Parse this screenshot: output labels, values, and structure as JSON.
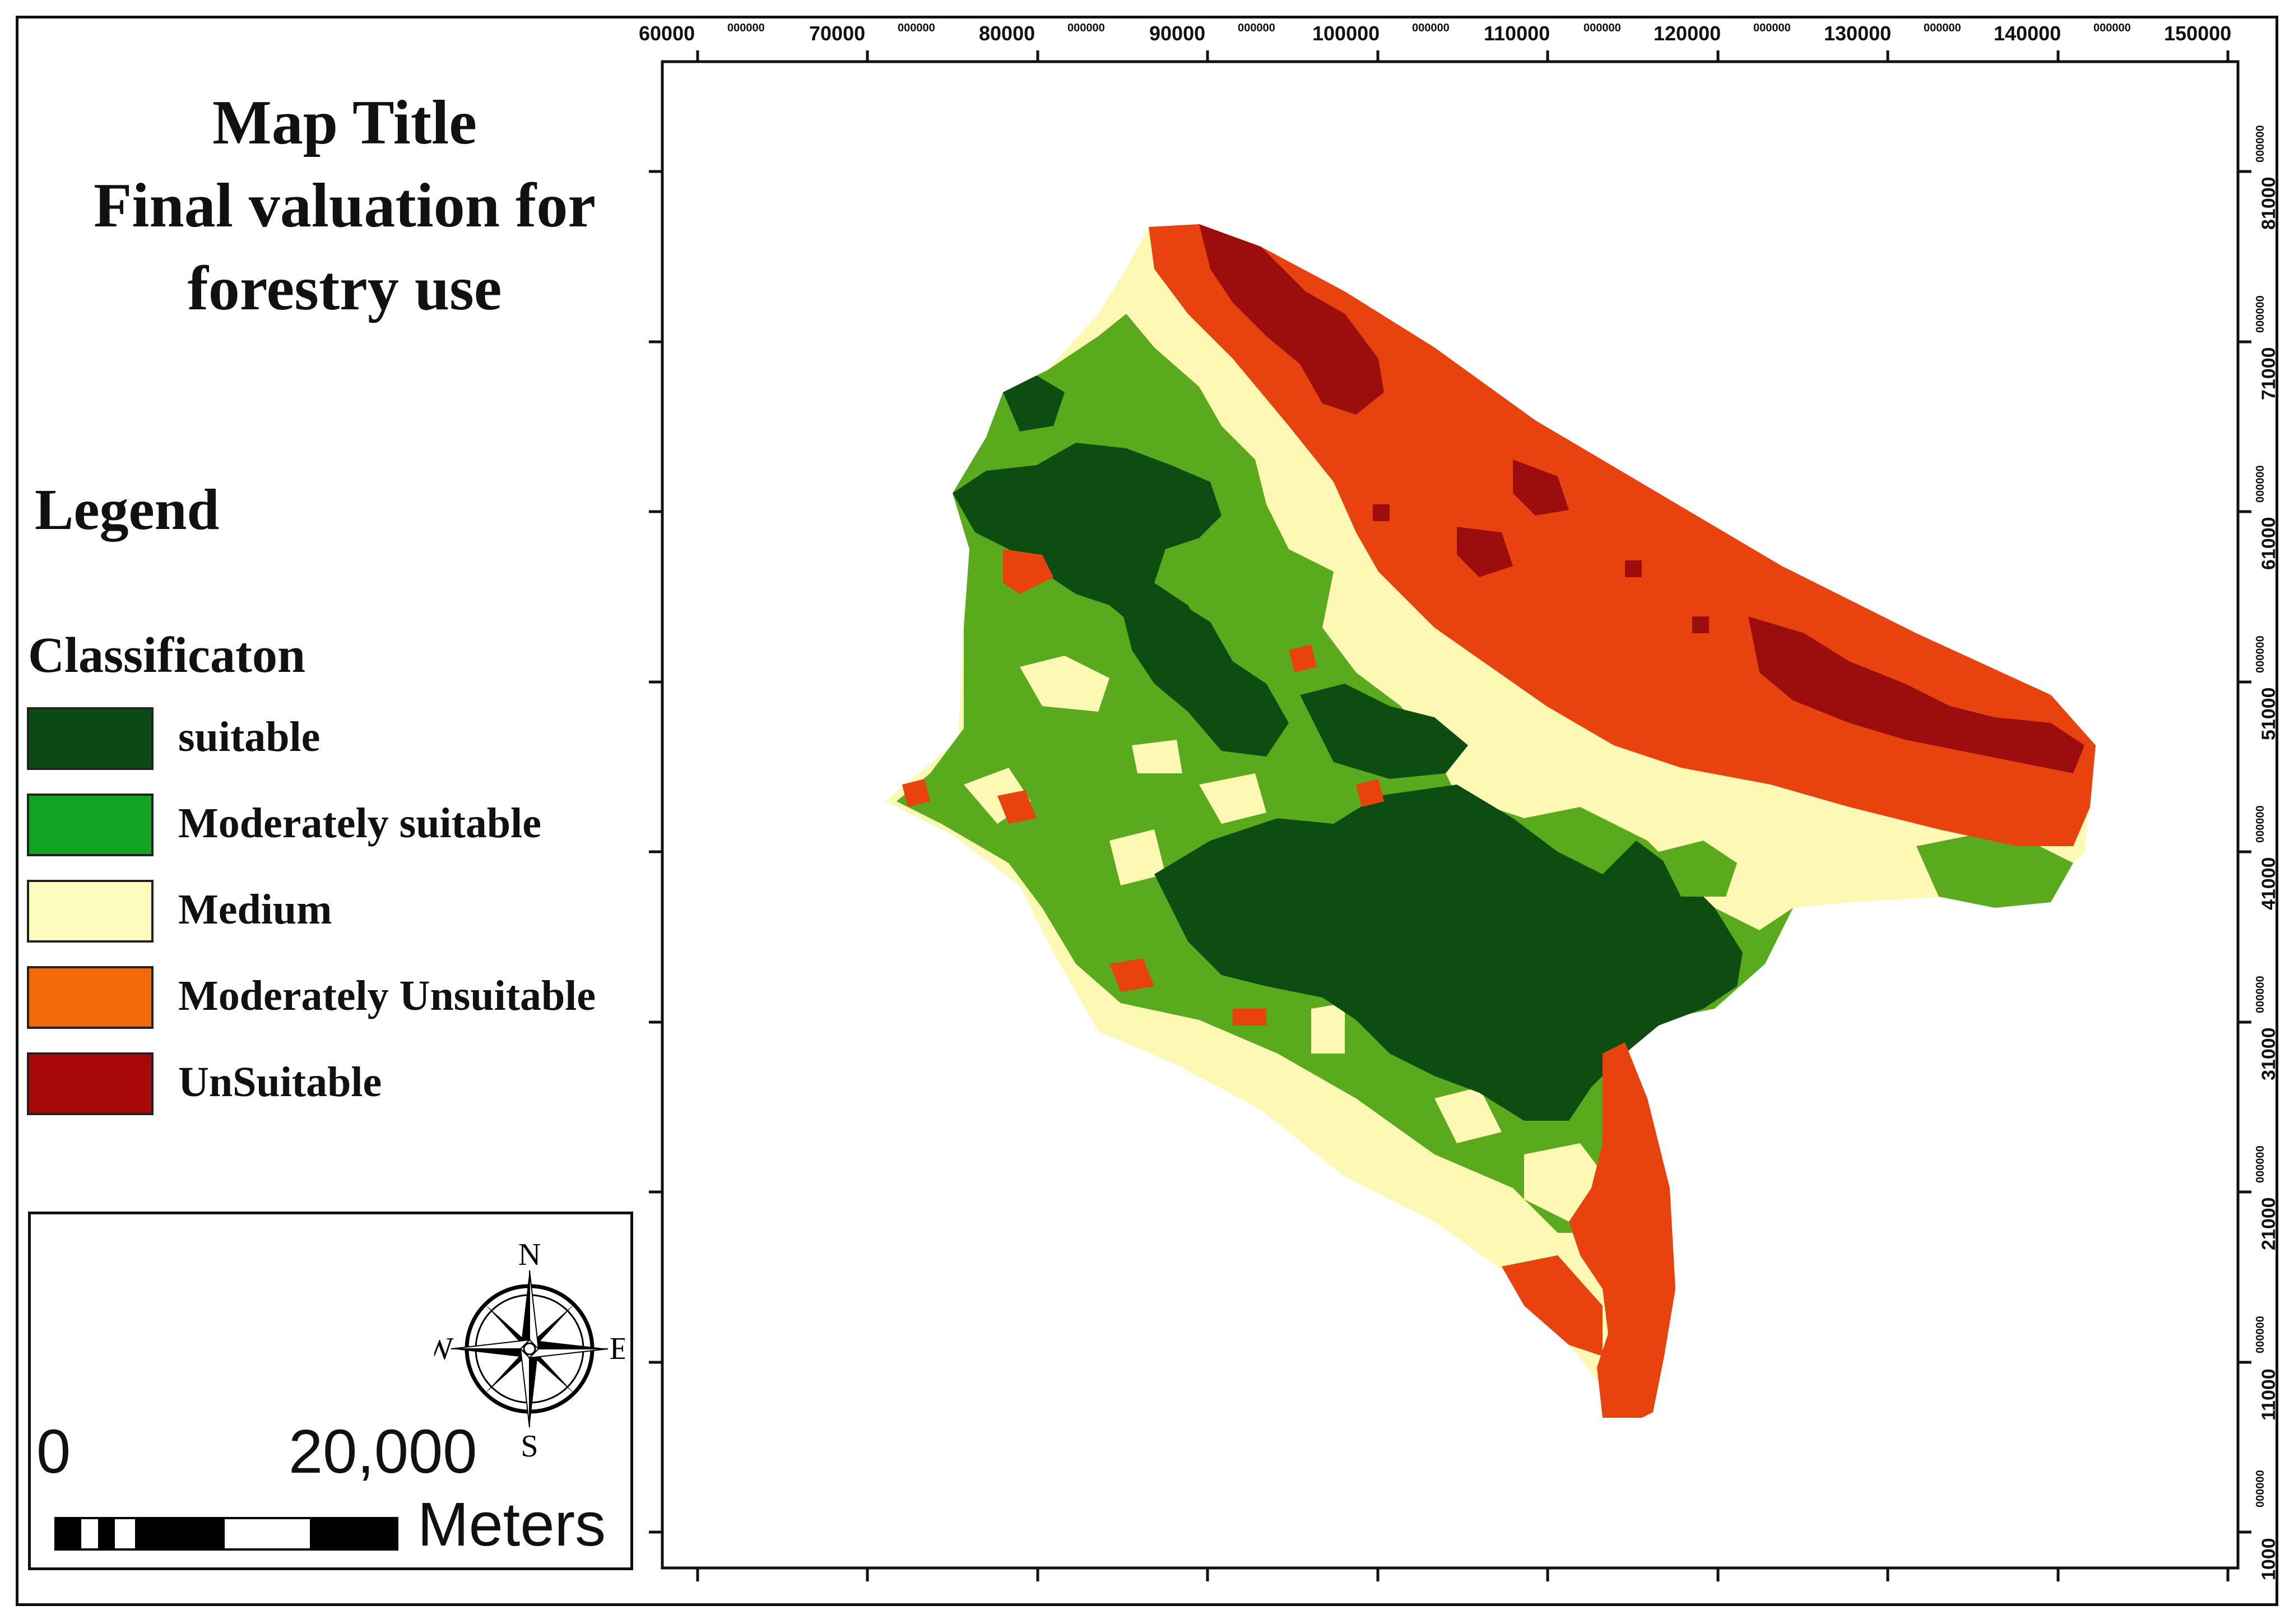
{
  "title": {
    "line1": "Map Title",
    "line2": "Final valuation for",
    "line3": "forestry use"
  },
  "legend": {
    "heading": "Legend",
    "subheading": "Classificaton",
    "items": [
      {
        "label": "suitable",
        "color": "#0b4a14"
      },
      {
        "label": "Moderately suitable",
        "color": "#12a321"
      },
      {
        "label": "Medium",
        "color": "#fdfbbe"
      },
      {
        "label": "Moderately Unsuitable",
        "color": "#f26a0a"
      },
      {
        "label": "UnSuitable",
        "color": "#a80808"
      }
    ]
  },
  "map_colors": {
    "suitable": "#0e4d12",
    "moderately_suitable": "#5aaa1e",
    "medium": "#fdf9b5",
    "moderately_unsuitable": "#e8430f",
    "unsuitable": "#9c0d0d"
  },
  "scale": {
    "start": "0",
    "end": "20,000",
    "units": "Meters"
  },
  "compass": {
    "n": "N",
    "s": "S",
    "e": "E",
    "w": "W",
    "icon": "north-arrow-compass-rose"
  },
  "axes": {
    "top_ticks": [
      {
        "main": "60000",
        "sub": "000000"
      },
      {
        "main": "70000",
        "sub": "000000"
      },
      {
        "main": "80000",
        "sub": "000000"
      },
      {
        "main": "90000",
        "sub": "000000"
      },
      {
        "main": "100000",
        "sub": "000000"
      },
      {
        "main": "110000",
        "sub": "000000"
      },
      {
        "main": "120000",
        "sub": "000000"
      },
      {
        "main": "130000",
        "sub": "000000"
      },
      {
        "main": "140000",
        "sub": "000000"
      },
      {
        "main": "150000",
        "sub": "000000"
      }
    ],
    "right_ticks": [
      {
        "main": "81000",
        "sub": "000000"
      },
      {
        "main": "71000",
        "sub": "000000"
      },
      {
        "main": "61000",
        "sub": "000000"
      },
      {
        "main": "51000",
        "sub": "000000"
      },
      {
        "main": "41000",
        "sub": "000000"
      },
      {
        "main": "31000",
        "sub": "000000"
      },
      {
        "main": "21000",
        "sub": "000000"
      },
      {
        "main": "11000",
        "sub": "000000"
      },
      {
        "main": "1000",
        "sub": "000000"
      }
    ]
  }
}
